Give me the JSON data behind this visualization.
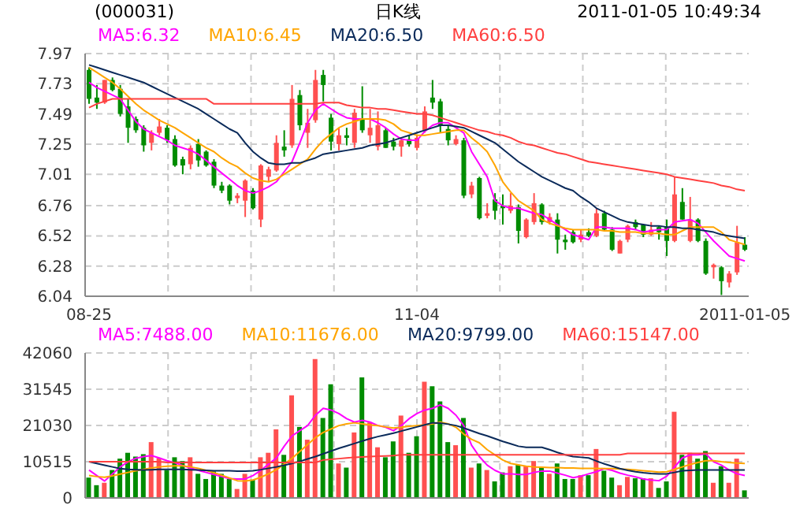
{
  "chart_data": [
    {
      "type": "candlestick",
      "title": "日K线",
      "subtitle": "(000031)",
      "annotations": [
        "2011-01-05 10:49:34"
      ],
      "categories": [
        "08-25",
        null,
        null,
        null,
        null,
        null,
        null,
        null,
        null,
        null,
        null,
        null,
        null,
        null,
        null,
        null,
        null,
        null,
        null,
        null,
        null,
        null,
        null,
        null,
        null,
        null,
        null,
        null,
        null,
        null,
        null,
        null,
        null,
        null,
        null,
        null,
        null,
        null,
        null,
        null,
        null,
        null,
        "11-04",
        null,
        null,
        null,
        null,
        null,
        null,
        null,
        null,
        null,
        null,
        null,
        null,
        null,
        null,
        null,
        null,
        null,
        null,
        null,
        null,
        null,
        null,
        null,
        null,
        null,
        null,
        null,
        null,
        null,
        null,
        null,
        null,
        null,
        null,
        null,
        null,
        null,
        null,
        null,
        null,
        null,
        "2011-01-05"
      ],
      "ohlc": [
        [
          7.84,
          7.86,
          7.57,
          7.61
        ],
        [
          7.62,
          7.72,
          7.53,
          7.58
        ],
        [
          7.58,
          7.76,
          7.57,
          7.76
        ],
        [
          7.76,
          7.78,
          7.67,
          7.68
        ],
        [
          7.69,
          7.72,
          7.47,
          7.49
        ],
        [
          7.55,
          7.61,
          7.26,
          7.38
        ],
        [
          7.45,
          7.47,
          7.34,
          7.36
        ],
        [
          7.38,
          7.4,
          7.19,
          7.24
        ],
        [
          7.26,
          7.36,
          7.2,
          7.34
        ],
        [
          7.34,
          7.45,
          7.32,
          7.39
        ],
        [
          7.38,
          7.4,
          7.26,
          7.28
        ],
        [
          7.29,
          7.32,
          7.07,
          7.08
        ],
        [
          7.13,
          7.15,
          7.01,
          7.08
        ],
        [
          7.09,
          7.24,
          7.05,
          7.22
        ],
        [
          7.25,
          7.29,
          7.07,
          7.12
        ],
        [
          7.19,
          7.2,
          7.07,
          7.08
        ],
        [
          7.11,
          7.13,
          6.9,
          6.92
        ],
        [
          6.92,
          6.95,
          6.86,
          6.88
        ],
        [
          6.92,
          6.93,
          6.77,
          6.8
        ],
        [
          6.82,
          6.86,
          6.78,
          6.84
        ],
        [
          6.8,
          6.97,
          6.67,
          6.96
        ],
        [
          6.88,
          6.9,
          6.73,
          6.74
        ],
        [
          6.65,
          7.09,
          6.59,
          7.08
        ],
        [
          6.99,
          7.07,
          6.95,
          7.05
        ],
        [
          7.04,
          7.32,
          7.03,
          7.26
        ],
        [
          7.23,
          7.36,
          7.15,
          7.2
        ],
        [
          7.24,
          7.72,
          7.22,
          7.61
        ],
        [
          7.64,
          7.68,
          7.36,
          7.4
        ],
        [
          7.34,
          7.53,
          7.22,
          7.42
        ],
        [
          7.44,
          7.84,
          7.42,
          7.76
        ],
        [
          7.8,
          7.84,
          7.59,
          7.72
        ],
        [
          7.46,
          7.49,
          7.2,
          7.27
        ],
        [
          7.25,
          7.38,
          7.2,
          7.32
        ],
        [
          7.32,
          7.38,
          7.24,
          7.3
        ],
        [
          7.26,
          7.53,
          7.22,
          7.5
        ],
        [
          7.45,
          7.71,
          7.34,
          7.36
        ],
        [
          7.32,
          7.53,
          7.26,
          7.38
        ],
        [
          7.23,
          7.51,
          7.2,
          7.4
        ],
        [
          7.36,
          7.38,
          7.22,
          7.22
        ],
        [
          7.27,
          7.3,
          7.2,
          7.23
        ],
        [
          7.23,
          7.3,
          7.15,
          7.28
        ],
        [
          7.29,
          7.32,
          7.23,
          7.25
        ],
        [
          7.22,
          7.32,
          7.2,
          7.3
        ],
        [
          7.36,
          7.55,
          7.34,
          7.51
        ],
        [
          7.62,
          7.76,
          7.53,
          7.58
        ],
        [
          7.59,
          7.61,
          7.34,
          7.4
        ],
        [
          7.37,
          7.4,
          7.24,
          7.28
        ],
        [
          7.25,
          7.32,
          7.24,
          7.29
        ],
        [
          7.28,
          7.3,
          6.82,
          6.84
        ],
        [
          6.85,
          6.95,
          6.82,
          6.92
        ],
        [
          6.98,
          6.99,
          6.65,
          6.66
        ],
        [
          6.68,
          6.78,
          6.66,
          6.7
        ],
        [
          6.81,
          6.86,
          6.65,
          6.72
        ],
        [
          6.76,
          6.85,
          6.61,
          6.74
        ],
        [
          6.72,
          6.86,
          6.7,
          6.76
        ],
        [
          6.75,
          6.77,
          6.46,
          6.56
        ],
        [
          6.51,
          6.66,
          6.5,
          6.65
        ],
        [
          6.63,
          6.86,
          6.61,
          6.78
        ],
        [
          6.77,
          6.78,
          6.61,
          6.63
        ],
        [
          6.63,
          6.7,
          6.61,
          6.67
        ],
        [
          6.65,
          6.7,
          6.38,
          6.49
        ],
        [
          6.49,
          6.53,
          6.41,
          6.47
        ],
        [
          6.55,
          6.57,
          6.46,
          6.47
        ],
        [
          6.49,
          6.57,
          6.47,
          6.53
        ],
        [
          6.55,
          6.58,
          6.51,
          6.52
        ],
        [
          6.52,
          6.74,
          6.51,
          6.7
        ],
        [
          6.7,
          6.72,
          6.56,
          6.57
        ],
        [
          6.57,
          6.59,
          6.4,
          6.41
        ],
        [
          6.38,
          6.49,
          6.38,
          6.48
        ],
        [
          6.49,
          6.61,
          6.47,
          6.6
        ],
        [
          6.63,
          6.65,
          6.57,
          6.59
        ],
        [
          6.61,
          6.61,
          6.51,
          6.53
        ],
        [
          6.53,
          6.63,
          6.52,
          6.57
        ],
        [
          6.59,
          6.6,
          6.49,
          6.55
        ],
        [
          6.59,
          6.65,
          6.36,
          6.48
        ],
        [
          6.48,
          6.99,
          6.47,
          6.85
        ],
        [
          6.79,
          6.9,
          6.65,
          6.65
        ],
        [
          6.48,
          6.83,
          6.47,
          6.65
        ],
        [
          6.65,
          6.66,
          6.47,
          6.48
        ],
        [
          6.48,
          6.5,
          6.21,
          6.22
        ],
        [
          6.27,
          6.3,
          6.18,
          6.29
        ],
        [
          6.27,
          6.28,
          6.05,
          6.16
        ],
        [
          6.15,
          6.24,
          6.11,
          6.22
        ],
        [
          6.23,
          6.6,
          6.21,
          6.47
        ],
        [
          6.45,
          6.51,
          6.4,
          6.41
        ]
      ],
      "colors": [
        "#008c00",
        "#008c00",
        "#ff5050",
        "#008c00",
        "#008c00",
        "#008c00",
        "#008c00",
        "#008c00",
        "#ff5050",
        "#ff5050",
        "#008c00",
        "#008c00",
        "#008c00",
        "#ff5050",
        "#008c00",
        "#008c00",
        "#008c00",
        "#008c00",
        "#008c00",
        "#ff5050",
        "#ff5050",
        "#008c00",
        "#ff5050",
        "#ff5050",
        "#ff5050",
        "#008c00",
        "#ff5050",
        "#008c00",
        "#ff5050",
        "#ff5050",
        "#008c00",
        "#008c00",
        "#ff5050",
        "#008c00",
        "#ff5050",
        "#008c00",
        "#ff5050",
        "#ff5050",
        "#008c00",
        "#008c00",
        "#ff5050",
        "#008c00",
        "#ff5050",
        "#ff5050",
        "#008c00",
        "#008c00",
        "#008c00",
        "#ff5050",
        "#008c00",
        "#ff5050",
        "#008c00",
        "#ff5050",
        "#008c00",
        "#008c00",
        "#ff5050",
        "#008c00",
        "#ff5050",
        "#ff5050",
        "#008c00",
        "#ff5050",
        "#008c00",
        "#008c00",
        "#008c00",
        "#ff5050",
        "#008c00",
        "#ff5050",
        "#008c00",
        "#008c00",
        "#ff5050",
        "#ff5050",
        "#008c00",
        "#008c00",
        "#ff5050",
        "#008c00",
        "#008c00",
        "#ff5050",
        "#008c00",
        "#ff5050",
        "#008c00",
        "#008c00",
        "#ff5050",
        "#008c00",
        "#ff5050",
        "#ff5050",
        "#008c00"
      ],
      "series": [
        {
          "type": "line",
          "name": "MA5:6.32",
          "color": "#ff00ff",
          "values": [
            7.74,
            7.7,
            7.67,
            7.64,
            7.61,
            7.52,
            7.43,
            7.37,
            7.34,
            7.31,
            7.28,
            7.24,
            7.22,
            7.2,
            7.17,
            7.12,
            7.07,
            7.02,
            6.97,
            6.92,
            6.88,
            6.86,
            6.88,
            6.91,
            6.95,
            7.03,
            7.11,
            7.26,
            7.42,
            7.52,
            7.57,
            7.53,
            7.49,
            7.46,
            7.45,
            7.45,
            7.45,
            7.42,
            7.38,
            7.33,
            7.29,
            7.28,
            7.28,
            7.35,
            7.4,
            7.42,
            7.42,
            7.38,
            7.34,
            7.19,
            7.09,
            6.99,
            6.8,
            6.76,
            6.74,
            6.74,
            6.72,
            6.7,
            6.69,
            6.65,
            6.61,
            6.57,
            6.53,
            6.51,
            6.49,
            6.59,
            6.59,
            6.58,
            6.58,
            6.58,
            6.57,
            6.55,
            6.56,
            6.57,
            6.57,
            6.63,
            6.64,
            6.65,
            6.62,
            6.55,
            6.48,
            6.42,
            6.36,
            6.34,
            6.32
          ]
        },
        {
          "type": "line",
          "name": "MA10:6.45",
          "color": "#ffa500",
          "values": [
            7.86,
            7.82,
            7.78,
            7.74,
            7.69,
            7.63,
            7.57,
            7.52,
            7.48,
            7.44,
            7.41,
            7.38,
            7.34,
            7.3,
            7.26,
            7.22,
            7.19,
            7.14,
            7.1,
            7.07,
            7.02,
            6.98,
            6.96,
            6.95,
            6.97,
            7.01,
            7.05,
            7.09,
            7.13,
            7.21,
            7.28,
            7.33,
            7.38,
            7.41,
            7.43,
            7.45,
            7.45,
            7.45,
            7.44,
            7.41,
            7.36,
            7.34,
            7.32,
            7.32,
            7.33,
            7.34,
            7.35,
            7.36,
            7.36,
            7.3,
            7.25,
            7.19,
            7.08,
            6.95,
            6.87,
            6.8,
            6.76,
            6.72,
            6.65,
            6.62,
            6.6,
            6.58,
            6.57,
            6.57,
            6.57,
            6.57,
            6.56,
            6.56,
            6.55,
            6.55,
            6.55,
            6.54,
            6.54,
            6.54,
            6.53,
            6.53,
            6.56,
            6.59,
            6.59,
            6.59,
            6.59,
            6.55,
            6.49,
            6.47,
            6.45
          ]
        },
        {
          "type": "line",
          "name": "MA20:6.50",
          "color": "#0a2a5a",
          "values": [
            7.88,
            7.86,
            7.84,
            7.82,
            7.8,
            7.78,
            7.76,
            7.74,
            7.71,
            7.68,
            7.65,
            7.62,
            7.59,
            7.56,
            7.53,
            7.49,
            7.45,
            7.41,
            7.37,
            7.34,
            7.26,
            7.19,
            7.14,
            7.1,
            7.09,
            7.09,
            7.1,
            7.1,
            7.12,
            7.14,
            7.17,
            7.18,
            7.19,
            7.2,
            7.21,
            7.22,
            7.24,
            7.25,
            7.26,
            7.28,
            7.3,
            7.32,
            7.34,
            7.36,
            7.38,
            7.4,
            7.4,
            7.39,
            7.38,
            7.35,
            7.32,
            7.29,
            7.26,
            7.21,
            7.16,
            7.11,
            7.07,
            7.03,
            6.99,
            6.96,
            6.93,
            6.9,
            6.88,
            6.83,
            6.79,
            6.74,
            6.71,
            6.68,
            6.65,
            6.63,
            6.62,
            6.61,
            6.6,
            6.6,
            6.59,
            6.59,
            6.58,
            6.58,
            6.57,
            6.56,
            6.55,
            6.53,
            6.52,
            6.51,
            6.5
          ]
        },
        {
          "type": "line",
          "name": "MA60:6.50",
          "color": "#ff4040",
          "values": [
            7.54,
            7.57,
            7.59,
            7.61,
            7.61,
            7.61,
            7.61,
            7.61,
            7.61,
            7.61,
            7.61,
            7.61,
            7.61,
            7.61,
            7.61,
            7.61,
            7.57,
            7.57,
            7.57,
            7.57,
            7.57,
            7.57,
            7.57,
            7.57,
            7.57,
            7.57,
            7.57,
            7.57,
            7.57,
            7.57,
            7.58,
            7.58,
            7.58,
            7.56,
            7.55,
            7.54,
            7.54,
            7.53,
            7.53,
            7.52,
            7.51,
            7.5,
            7.49,
            7.49,
            7.48,
            7.46,
            7.44,
            7.42,
            7.4,
            7.38,
            7.36,
            7.35,
            7.33,
            7.32,
            7.3,
            7.27,
            7.25,
            7.24,
            7.22,
            7.2,
            7.18,
            7.17,
            7.15,
            7.13,
            7.11,
            7.1,
            7.09,
            7.08,
            7.07,
            7.06,
            7.05,
            7.04,
            7.03,
            7.02,
            7.01,
            6.99,
            6.98,
            6.97,
            6.96,
            6.95,
            6.94,
            6.92,
            6.91,
            6.89,
            6.88
          ]
        }
      ],
      "ylim": [
        6.04,
        7.97
      ],
      "yticks": [
        6.04,
        6.28,
        6.52,
        6.76,
        7.01,
        7.25,
        7.49,
        7.73,
        7.97
      ],
      "grid": true,
      "legend": "top"
    },
    {
      "type": "bar",
      "categories": [
        null,
        null,
        null,
        null,
        null,
        null,
        null,
        null,
        null,
        null,
        null,
        null,
        null,
        null,
        null,
        null,
        null,
        null,
        null,
        null,
        null,
        null,
        null,
        null,
        null,
        null,
        null,
        null,
        null,
        null,
        null,
        null,
        null,
        null,
        null,
        null,
        null,
        null,
        null,
        null,
        null,
        null,
        null,
        null,
        null,
        null,
        null,
        null,
        null,
        null,
        null,
        null,
        null,
        null,
        null,
        null,
        null,
        null,
        null,
        null,
        null,
        null,
        null,
        null,
        null,
        null,
        null,
        null,
        null,
        null,
        null,
        null,
        null,
        null,
        null,
        null,
        null,
        null,
        null,
        null,
        null,
        null,
        null,
        null,
        null
      ],
      "series": [
        {
          "type": "bar",
          "values": [
            5900,
            3700,
            4400,
            8100,
            11400,
            13100,
            12000,
            12700,
            16200,
            11600,
            8100,
            11800,
            10700,
            11800,
            7000,
            5500,
            7700,
            7000,
            5500,
            2600,
            7000,
            5300,
            11800,
            13100,
            19900,
            12500,
            29800,
            20600,
            16900,
            40300,
            23200,
            33000,
            10000,
            8800,
            19000,
            35000,
            21900,
            14700,
            11800,
            16400,
            23900,
            13100,
            17900,
            33700,
            32400,
            28000,
            16200,
            15300,
            23200,
            8800,
            10000,
            8100,
            4800,
            7400,
            9200,
            9600,
            9200,
            10700,
            8800,
            7000,
            10000,
            5500,
            5500,
            6600,
            6600,
            14200,
            7900,
            5900,
            3700,
            6100,
            5700,
            5700,
            5700,
            2900,
            4800,
            25000,
            12500,
            13100,
            11400,
            13600,
            4400,
            9200,
            4400,
            11400,
            2200
          ],
          "colors": [
            "#008c00",
            "#008c00",
            "#ff5050",
            "#008c00",
            "#008c00",
            "#008c00",
            "#008c00",
            "#008c00",
            "#ff5050",
            "#ff5050",
            "#008c00",
            "#008c00",
            "#008c00",
            "#ff5050",
            "#008c00",
            "#008c00",
            "#008c00",
            "#008c00",
            "#008c00",
            "#ff5050",
            "#ff5050",
            "#008c00",
            "#ff5050",
            "#ff5050",
            "#ff5050",
            "#008c00",
            "#ff5050",
            "#008c00",
            "#ff5050",
            "#ff5050",
            "#008c00",
            "#008c00",
            "#ff5050",
            "#008c00",
            "#ff5050",
            "#008c00",
            "#ff5050",
            "#ff5050",
            "#008c00",
            "#008c00",
            "#ff5050",
            "#008c00",
            "#008c00",
            "#ff5050",
            "#008c00",
            "#008c00",
            "#008c00",
            "#ff5050",
            "#008c00",
            "#ff5050",
            "#008c00",
            "#ff5050",
            "#008c00",
            "#008c00",
            "#ff5050",
            "#008c00",
            "#ff5050",
            "#ff5050",
            "#008c00",
            "#ff5050",
            "#008c00",
            "#008c00",
            "#008c00",
            "#ff5050",
            "#008c00",
            "#ff5050",
            "#008c00",
            "#008c00",
            "#ff5050",
            "#ff5050",
            "#008c00",
            "#008c00",
            "#ff5050",
            "#008c00",
            "#008c00",
            "#ff5050",
            "#008c00",
            "#ff5050",
            "#008c00",
            "#008c00",
            "#ff5050",
            "#008c00",
            "#ff5050",
            "#ff5050",
            "#008c00"
          ]
        },
        {
          "type": "line",
          "name": "MA5:7488.00",
          "color": "#ff00ff",
          "values": [
            8100,
            6500,
            4900,
            7000,
            9000,
            10500,
            11500,
            12000,
            12300,
            11600,
            10800,
            10200,
            9400,
            8700,
            8000,
            7400,
            6800,
            6200,
            5600,
            5500,
            5500,
            6500,
            8000,
            9800,
            11600,
            15000,
            18000,
            19500,
            21000,
            24000,
            26000,
            25500,
            24500,
            23000,
            22000,
            22500,
            22000,
            21000,
            20500,
            19500,
            21000,
            23000,
            24500,
            25500,
            26000,
            27000,
            26000,
            24000,
            21000,
            15300,
            12000,
            9500,
            8000,
            7000,
            7000,
            6800,
            6800,
            7400,
            7800,
            7800,
            7200,
            6600,
            5900,
            6300,
            7000,
            7600,
            8500,
            8000,
            7200,
            6600,
            6100,
            5500,
            5200,
            5000,
            6300,
            9000,
            11600,
            12500,
            12500,
            12800,
            10500,
            9500,
            8100,
            7000,
            6500
          ]
        },
        {
          "type": "line",
          "name": "MA10:11676.00",
          "color": "#ffa500",
          "values": [
            6500,
            6200,
            6000,
            6400,
            6900,
            7400,
            7900,
            8300,
            8700,
            9000,
            9200,
            9300,
            9300,
            9000,
            8600,
            8000,
            7300,
            6600,
            5800,
            5000,
            4900,
            5200,
            6000,
            7000,
            8200,
            9800,
            11500,
            13500,
            15500,
            17500,
            19000,
            20000,
            21000,
            21500,
            21800,
            21500,
            21200,
            21000,
            20600,
            20300,
            20500,
            20800,
            21000,
            21200,
            21500,
            22000,
            21500,
            20500,
            18500,
            17000,
            16000,
            14000,
            12500,
            11000,
            10000,
            9600,
            9200,
            9000,
            8900,
            8800,
            8800,
            8700,
            8700,
            8600,
            8600,
            8600,
            8500,
            8500,
            8400,
            8300,
            8100,
            7900,
            7700,
            7500,
            7600,
            8300,
            9000,
            9700,
            10300,
            10800,
            10800,
            10500,
            10300,
            10100,
            10000
          ]
        },
        {
          "type": "line",
          "name": "MA20:9799.00",
          "color": "#0a2a5a",
          "values": [
            10500,
            10000,
            9500,
            9000,
            8500,
            8300,
            8200,
            8100,
            8200,
            8300,
            8300,
            8300,
            8300,
            8200,
            8100,
            8000,
            7900,
            7900,
            7900,
            7800,
            7800,
            7900,
            8200,
            8600,
            9000,
            9500,
            10000,
            10600,
            11300,
            12000,
            12800,
            13600,
            14400,
            15100,
            15800,
            16500,
            17200,
            17800,
            18300,
            18800,
            19400,
            20000,
            20600,
            21200,
            21800,
            21700,
            21400,
            21000,
            20300,
            19500,
            18700,
            18000,
            17200,
            16400,
            15700,
            15000,
            14700,
            14700,
            14700,
            14000,
            13200,
            12500,
            12000,
            11800,
            11600,
            10700,
            9900,
            9200,
            8500,
            8000,
            7600,
            7300,
            7100,
            7000,
            7000,
            7400,
            7900,
            8000,
            8100,
            8100,
            8100,
            8100,
            8100,
            8100,
            8100
          ]
        },
        {
          "type": "line",
          "name": "MA60:15147.00",
          "color": "#ff4040",
          "values": [
            10500,
            10500,
            10500,
            10500,
            10500,
            10500,
            10500,
            10500,
            10500,
            10500,
            10300,
            10300,
            10300,
            10300,
            10300,
            10300,
            10300,
            10300,
            10300,
            10300,
            10300,
            10300,
            10300,
            10300,
            10300,
            10300,
            10300,
            10300,
            10300,
            10300,
            11000,
            11200,
            11400,
            11600,
            11800,
            11900,
            12000,
            12100,
            12200,
            12300,
            12500,
            12500,
            12500,
            12500,
            12500,
            12500,
            12500,
            12500,
            12500,
            12500,
            12500,
            12500,
            12500,
            12500,
            12500,
            12500,
            12500,
            12500,
            12500,
            12500,
            12500,
            12500,
            12500,
            12500,
            12500,
            12500,
            12500,
            12500,
            12500,
            12900,
            12900,
            12900,
            12900,
            12900,
            12900,
            12900,
            12900,
            12900,
            12900,
            12900,
            12900,
            12900,
            12900,
            12900,
            12900
          ]
        }
      ],
      "ylim": [
        0,
        42060
      ],
      "yticks": [
        0,
        10515,
        21030,
        31545,
        42060
      ],
      "grid": true,
      "legend": "top",
      "tick_labels": "y"
    }
  ]
}
